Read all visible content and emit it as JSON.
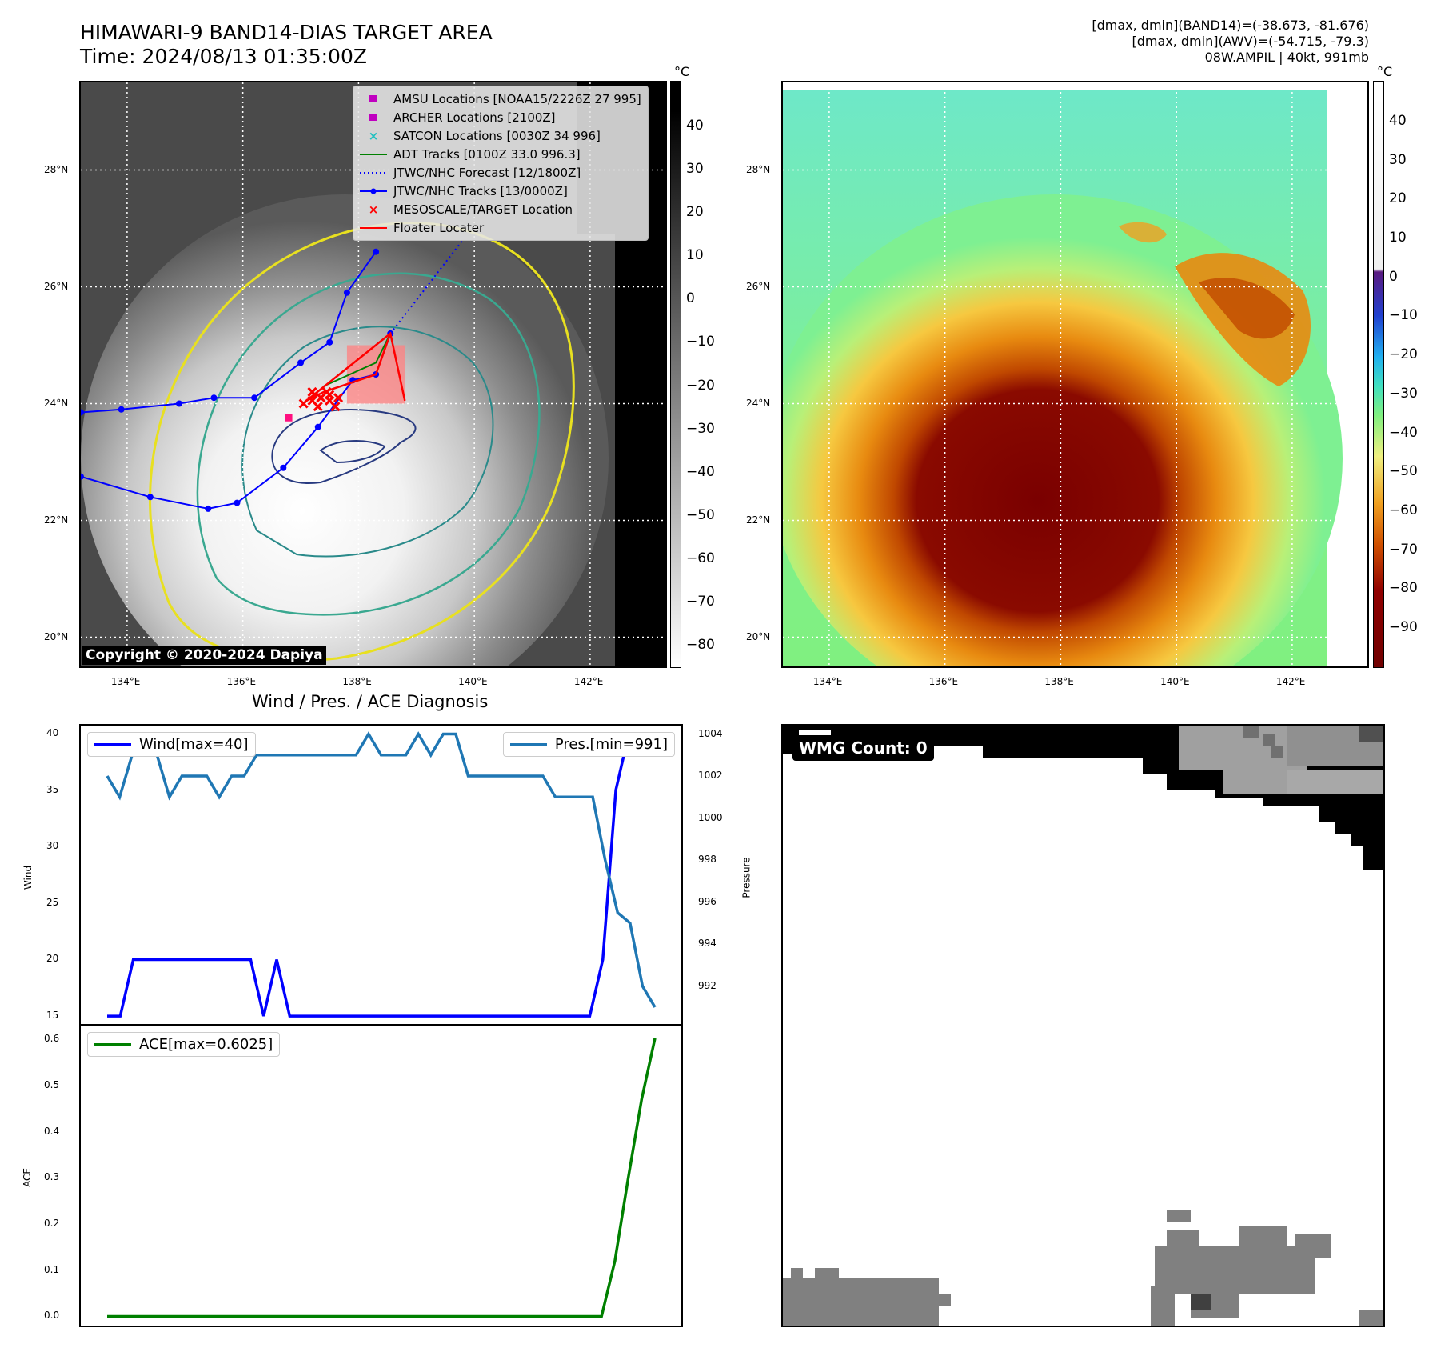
{
  "header": {
    "title_line1": "HIMAWARI-9 BAND14-DIAS TARGET AREA",
    "title_line2": "Time: 2024/08/13 01:35:00Z",
    "info_line1": "[dmax, dmin](BAND14)=(-38.673, -81.676)",
    "info_line2": "[dmax, dmin](AWV)=(-54.715, -79.3)",
    "info_line3": "08W.AMPIL | 40kt, 991mb"
  },
  "map": {
    "lat_labels": [
      "28°N",
      "26°N",
      "24°N",
      "22°N",
      "20°N"
    ],
    "lon_labels": [
      "134°E",
      "136°E",
      "138°E",
      "140°E",
      "142°E"
    ],
    "lat_values": [
      28,
      26,
      24,
      22,
      20
    ],
    "lon_values": [
      134,
      136,
      138,
      140,
      142
    ],
    "lon_range": [
      133.2,
      143.3
    ],
    "lat_range": [
      19.5,
      29.5
    ],
    "copyright": "Copyright © 2020-2024 Dapiya"
  },
  "colorbar_left": {
    "unit": "°C",
    "ticks": [
      "40",
      "30",
      "20",
      "10",
      "0",
      "−10",
      "−20",
      "−30",
      "−40",
      "−50",
      "−60",
      "−70",
      "−80"
    ]
  },
  "colorbar_right": {
    "unit": "°C",
    "ticks": [
      "40",
      "30",
      "20",
      "10",
      "0",
      "−10",
      "−20",
      "−30",
      "−40",
      "−50",
      "−60",
      "−70",
      "−80",
      "−90"
    ]
  },
  "legend": {
    "items": [
      {
        "label": "AMSU Locations [NOAA15/2226Z 27 995]",
        "symbol": "square",
        "color": "#c000c0"
      },
      {
        "label": "ARCHER Locations [2100Z]",
        "symbol": "square",
        "color": "#c000c0"
      },
      {
        "label": "SATCON Locations [0030Z 34 996]",
        "symbol": "x",
        "color": "#20c0c0"
      },
      {
        "label": "ADT Tracks [0100Z 33.0 996.3]",
        "symbol": "line",
        "color": "#008000"
      },
      {
        "label": "JTWC/NHC Forecast [12/1800Z]",
        "symbol": "dotted",
        "color": "#0000ff"
      },
      {
        "label": "JTWC/NHC Tracks [13/0000Z]",
        "symbol": "dotline",
        "color": "#0000ff"
      },
      {
        "label": "MESOSCALE/TARGET Location",
        "symbol": "x",
        "color": "#ff0000"
      },
      {
        "label": "Floater Locater",
        "symbol": "line",
        "color": "#ff0000"
      }
    ]
  },
  "diagnosis": {
    "title": "Wind / Pres. / ACE Diagnosis",
    "wind_legend": "Wind[max=40]",
    "pres_legend": "Pres.[min=991]",
    "ace_legend": "ACE[max=0.6025]",
    "wind_ylabel": "Wind",
    "pres_ylabel": "Pressure",
    "ace_ylabel": "ACE",
    "wind_ticks": [
      "40",
      "35",
      "30",
      "25",
      "20",
      "15"
    ],
    "pres_ticks": [
      "1004",
      "1002",
      "1000",
      "998",
      "996",
      "994",
      "992"
    ],
    "ace_ticks": [
      "0.6",
      "0.5",
      "0.4",
      "0.3",
      "0.2",
      "0.1",
      "0.0"
    ]
  },
  "wmg": {
    "label": "WMG Count: 0"
  },
  "chart_data": [
    {
      "type": "line",
      "title": "Wind / Pres. / ACE Diagnosis",
      "series": [
        {
          "name": "Wind[max=40]",
          "color": "#0000ff",
          "values": [
            15,
            15,
            20,
            20,
            20,
            20,
            20,
            20,
            20,
            20,
            20,
            20,
            15,
            20,
            15,
            15,
            15,
            15,
            15,
            15,
            15,
            15,
            15,
            15,
            15,
            15,
            15,
            15,
            15,
            15,
            15,
            15,
            15,
            15,
            15,
            15,
            15,
            15,
            20,
            35,
            40,
            40,
            40
          ]
        },
        {
          "name": "Pres.[min=991]",
          "color": "#1f77b4",
          "values": [
            1002,
            1001,
            1003,
            1003,
            1003,
            1001,
            1002,
            1002,
            1002,
            1001,
            1002,
            1002,
            1003,
            1003,
            1003,
            1003,
            1003,
            1003,
            1003,
            1003,
            1003,
            1004,
            1003,
            1003,
            1003,
            1004,
            1003,
            1004,
            1004,
            1002,
            1002,
            1002,
            1002,
            1002,
            1002,
            1002,
            1001,
            1001,
            1001,
            1001,
            998,
            995.5,
            995,
            992,
            991
          ]
        },
        {
          "name": "ACE[max=0.6025]",
          "color": "#008000",
          "values": [
            0,
            0,
            0,
            0,
            0,
            0,
            0,
            0,
            0,
            0,
            0,
            0,
            0,
            0,
            0,
            0,
            0,
            0,
            0,
            0,
            0,
            0,
            0,
            0,
            0,
            0,
            0,
            0,
            0,
            0,
            0,
            0,
            0,
            0,
            0,
            0,
            0,
            0,
            0.12,
            0.3,
            0.47,
            0.6025
          ]
        }
      ],
      "wind_ylim": [
        14.3,
        40.7
      ],
      "pres_ylim": [
        990.2,
        1004.4
      ],
      "ace_ylim": [
        -0.02,
        0.63
      ]
    }
  ],
  "tracks": {
    "jtwc": [
      [
        133.2,
        23.85
      ],
      [
        133.9,
        23.9
      ],
      [
        134.9,
        24.0
      ],
      [
        135.5,
        24.1
      ],
      [
        136.2,
        24.1
      ],
      [
        137.0,
        24.7
      ],
      [
        137.5,
        25.05
      ],
      [
        137.8,
        25.9
      ],
      [
        138.3,
        26.6
      ]
    ],
    "jtwc_south": [
      [
        133.2,
        22.75
      ],
      [
        134.4,
        22.4
      ],
      [
        135.4,
        22.2
      ],
      [
        135.9,
        22.3
      ],
      [
        136.7,
        22.9
      ],
      [
        137.3,
        23.6
      ],
      [
        137.9,
        24.4
      ],
      [
        138.3,
        24.5
      ],
      [
        138.55,
        25.2
      ]
    ],
    "forecast": [
      [
        138.55,
        25.2
      ],
      [
        139.1,
        25.9
      ],
      [
        139.8,
        26.8
      ]
    ],
    "adt": [
      [
        137.4,
        24.3
      ],
      [
        138.3,
        24.7
      ],
      [
        138.55,
        25.2
      ]
    ],
    "floater": [
      [
        138.55,
        25.2
      ],
      [
        138.3,
        24.5
      ],
      [
        137.4,
        24.2
      ],
      [
        137.1,
        24.05
      ],
      [
        138.55,
        25.2
      ],
      [
        138.8,
        24.05
      ]
    ],
    "target_box": {
      "lon0": 137.8,
      "lon1": 138.8,
      "lat0": 24.0,
      "lat1": 25.0
    },
    "target_marks": [
      [
        137.05,
        24.0
      ],
      [
        137.2,
        24.05
      ],
      [
        137.35,
        24.1
      ],
      [
        137.5,
        24.05
      ],
      [
        137.65,
        24.1
      ],
      [
        137.3,
        23.95
      ],
      [
        137.45,
        24.2
      ],
      [
        137.6,
        23.95
      ],
      [
        137.2,
        24.2
      ],
      [
        137.5,
        24.15
      ]
    ],
    "magenta_mark": [
      136.8,
      23.75
    ]
  }
}
